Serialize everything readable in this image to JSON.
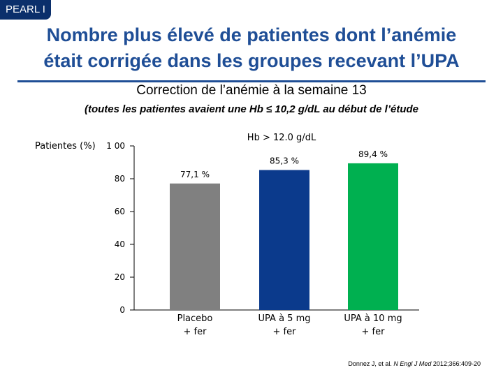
{
  "tag": "PEARL I",
  "title_line1": "Nombre plus élevé de patientes dont l’anémie",
  "title_line2": "était corrigée dans les groupes recevant l’UPA",
  "subtitle": "Correction de l’anémie à la semaine 13",
  "note": "(toutes les patientes avaient une Hb ≤ 10,2 g/dL au début de l’étude",
  "citation": {
    "prefix": "Donnez J, et al. ",
    "journal": "N Engl J Med",
    "suffix": " 2012;366:409-20"
  },
  "chart_data": {
    "type": "bar",
    "title": "Hb > 12.0 g/dL",
    "ylabel": "Patientes (%)",
    "ylim": [
      0,
      100
    ],
    "yticks": [
      0,
      20,
      40,
      60,
      80,
      100
    ],
    "ytick_labels": [
      "0",
      "20",
      "40",
      "60",
      "80",
      "1 00"
    ],
    "categories": [
      [
        "Placebo",
        "+ fer"
      ],
      [
        "UPA à 5 mg",
        "+ fer"
      ],
      [
        "UPA à 10 mg",
        "+ fer"
      ]
    ],
    "values": [
      77.1,
      85.3,
      89.4
    ],
    "value_labels": [
      "77,1 %",
      "85,3 %",
      "89,4 %"
    ],
    "colors": [
      "#808080",
      "#0b3a8c",
      "#00b050"
    ]
  }
}
